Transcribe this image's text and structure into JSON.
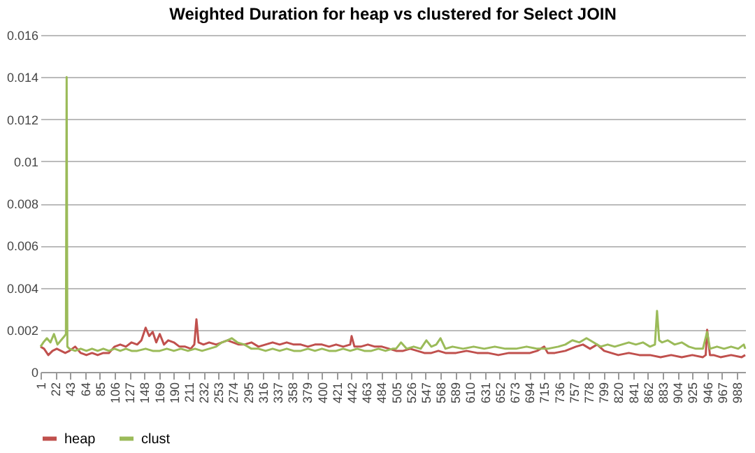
{
  "chart_data": {
    "type": "line",
    "title": "Weighted Duration for  heap vs clustered for Select JOIN",
    "xlim": [
      1,
      1000
    ],
    "xticks": [
      1,
      22,
      43,
      64,
      85,
      106,
      127,
      148,
      169,
      190,
      211,
      232,
      253,
      274,
      295,
      316,
      337,
      358,
      379,
      400,
      421,
      442,
      463,
      484,
      505,
      526,
      547,
      568,
      589,
      610,
      631,
      652,
      673,
      694,
      715,
      736,
      757,
      778,
      799,
      820,
      841,
      862,
      883,
      904,
      925,
      946,
      967,
      988
    ],
    "ylim": [
      0,
      0.016
    ],
    "yticks": [
      0,
      0.002,
      0.004,
      0.006,
      0.008,
      0.01,
      0.012,
      0.014,
      0.016
    ],
    "grid": "y",
    "legend": "bottom",
    "marker": "none",
    "line_style": "solid",
    "series": [
      {
        "name": "heap",
        "color": "#c0504d",
        "x": [
          1,
          6,
          12,
          18,
          24,
          30,
          36,
          42,
          50,
          58,
          66,
          74,
          82,
          90,
          98,
          106,
          114,
          122,
          130,
          138,
          144,
          150,
          155,
          160,
          165,
          170,
          176,
          182,
          190,
          198,
          206,
          214,
          219,
          222,
          225,
          232,
          240,
          250,
          258,
          266,
          274,
          282,
          290,
          300,
          310,
          320,
          330,
          340,
          350,
          360,
          370,
          380,
          390,
          400,
          410,
          420,
          430,
          440,
          442,
          446,
          455,
          465,
          475,
          485,
          495,
          505,
          515,
          525,
          535,
          545,
          555,
          565,
          575,
          590,
          605,
          620,
          635,
          650,
          665,
          680,
          695,
          705,
          715,
          720,
          730,
          745,
          760,
          770,
          780,
          790,
          800,
          810,
          820,
          835,
          850,
          865,
          880,
          895,
          910,
          925,
          940,
          944,
          946,
          950,
          955,
          965,
          980,
          995,
          1000
        ],
        "values": [
          0.0012,
          0.0011,
          0.0008,
          0.001,
          0.0011,
          0.001,
          0.0009,
          0.001,
          0.0012,
          0.0009,
          0.0008,
          0.0009,
          0.0008,
          0.0009,
          0.0009,
          0.0012,
          0.0013,
          0.0012,
          0.0014,
          0.0013,
          0.0015,
          0.0021,
          0.0017,
          0.0019,
          0.0014,
          0.0018,
          0.0013,
          0.0015,
          0.0014,
          0.0012,
          0.0012,
          0.0011,
          0.0013,
          0.0025,
          0.0014,
          0.0013,
          0.0014,
          0.0013,
          0.0014,
          0.0015,
          0.0014,
          0.0013,
          0.0013,
          0.0014,
          0.0012,
          0.0013,
          0.0014,
          0.0013,
          0.0014,
          0.0013,
          0.0013,
          0.0012,
          0.0013,
          0.0013,
          0.0012,
          0.0013,
          0.0012,
          0.0013,
          0.0017,
          0.0012,
          0.0012,
          0.0013,
          0.0012,
          0.0012,
          0.0011,
          0.001,
          0.001,
          0.0011,
          0.001,
          0.0009,
          0.0009,
          0.001,
          0.0009,
          0.0009,
          0.001,
          0.0009,
          0.0009,
          0.0008,
          0.0009,
          0.0009,
          0.0009,
          0.001,
          0.0012,
          0.0009,
          0.0009,
          0.001,
          0.0012,
          0.0013,
          0.0011,
          0.0013,
          0.001,
          0.0009,
          0.0008,
          0.0009,
          0.0008,
          0.0008,
          0.0007,
          0.0008,
          0.0007,
          0.0008,
          0.0007,
          0.0008,
          0.002,
          0.0008,
          0.0008,
          0.0007,
          0.0008,
          0.0007,
          0.0008
        ]
      },
      {
        "name": "clust",
        "color": "#9bbb59",
        "x": [
          1,
          5,
          10,
          15,
          20,
          25,
          30,
          35,
          37,
          38,
          39,
          42,
          50,
          58,
          66,
          74,
          82,
          90,
          98,
          106,
          114,
          122,
          130,
          138,
          150,
          160,
          170,
          180,
          190,
          200,
          210,
          220,
          230,
          240,
          250,
          258,
          266,
          272,
          280,
          290,
          300,
          310,
          320,
          330,
          340,
          350,
          360,
          370,
          380,
          390,
          400,
          410,
          420,
          430,
          440,
          450,
          460,
          470,
          480,
          490,
          500,
          505,
          512,
          520,
          530,
          540,
          548,
          555,
          562,
          568,
          575,
          585,
          600,
          615,
          630,
          645,
          660,
          675,
          690,
          705,
          720,
          735,
          745,
          755,
          765,
          775,
          785,
          795,
          805,
          815,
          825,
          835,
          845,
          855,
          865,
          872,
          875,
          878,
          882,
          890,
          900,
          910,
          920,
          930,
          940,
          946,
          950,
          960,
          970,
          980,
          990,
          998,
          1000
        ],
        "values": [
          0.0012,
          0.0014,
          0.0016,
          0.0014,
          0.0018,
          0.0013,
          0.0015,
          0.0017,
          0.0018,
          0.014,
          0.0012,
          0.0011,
          0.001,
          0.0011,
          0.001,
          0.0011,
          0.001,
          0.0011,
          0.001,
          0.0011,
          0.001,
          0.0011,
          0.001,
          0.001,
          0.0011,
          0.001,
          0.001,
          0.0011,
          0.001,
          0.0011,
          0.001,
          0.0011,
          0.001,
          0.0011,
          0.0012,
          0.0014,
          0.0015,
          0.0016,
          0.0014,
          0.0013,
          0.0011,
          0.0011,
          0.001,
          0.0011,
          0.001,
          0.0011,
          0.001,
          0.001,
          0.0011,
          0.001,
          0.0011,
          0.001,
          0.001,
          0.0011,
          0.001,
          0.0011,
          0.001,
          0.001,
          0.0011,
          0.001,
          0.0011,
          0.0011,
          0.0014,
          0.0011,
          0.0012,
          0.0011,
          0.0015,
          0.0012,
          0.0013,
          0.0016,
          0.0011,
          0.0012,
          0.0011,
          0.0012,
          0.0011,
          0.0012,
          0.0011,
          0.0011,
          0.0012,
          0.0011,
          0.0011,
          0.0012,
          0.0013,
          0.0015,
          0.0014,
          0.0016,
          0.0014,
          0.0012,
          0.0013,
          0.0012,
          0.0013,
          0.0014,
          0.0013,
          0.0014,
          0.0012,
          0.0013,
          0.0029,
          0.0015,
          0.0014,
          0.0015,
          0.0013,
          0.0014,
          0.0012,
          0.0011,
          0.0011,
          0.0019,
          0.0011,
          0.0012,
          0.0011,
          0.0012,
          0.0011,
          0.0013,
          0.0011
        ]
      }
    ]
  }
}
